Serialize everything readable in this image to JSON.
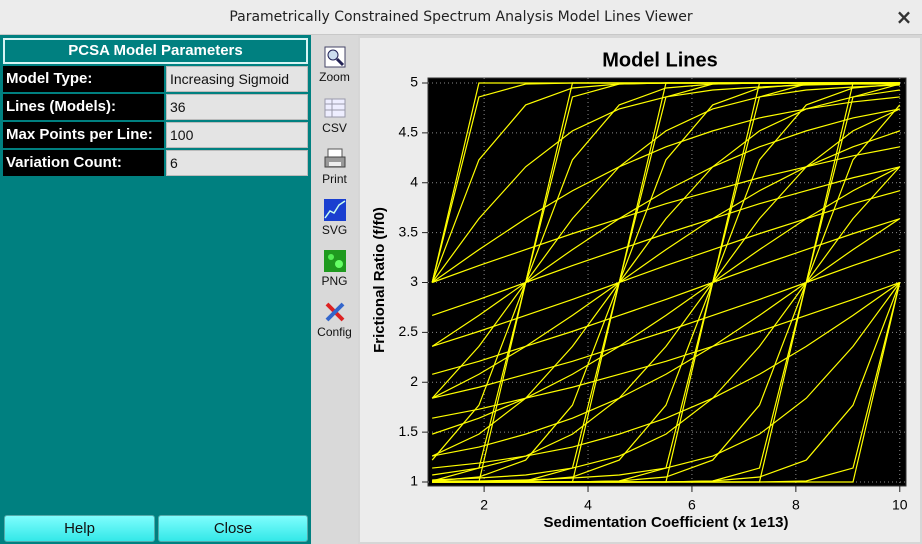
{
  "window": {
    "title": "Parametrically Constrained Spectrum Analysis Model Lines Viewer",
    "close": "×"
  },
  "panel": {
    "header": "PCSA Model Parameters",
    "rows": [
      [
        "Model Type:",
        "Increasing Sigmoid"
      ],
      [
        "Lines (Models):",
        "36"
      ],
      [
        "Max Points per Line:",
        "100"
      ],
      [
        "Variation Count:",
        "6"
      ]
    ],
    "buttons": [
      "Help",
      "Close"
    ]
  },
  "toolbar": [
    "Zoom",
    "CSV",
    "Print",
    "SVG",
    "PNG",
    "Config"
  ],
  "chart_data": {
    "type": "line",
    "title": "Model Lines",
    "x_label": "Sedimentation Coefficient (x 1e13)",
    "y_label": "Frictional Ratio (f/f0)",
    "x": [
      1,
      1.9,
      2.8,
      3.7,
      4.6,
      5.5,
      6.4,
      7.3,
      8.2,
      9.1,
      10
    ],
    "xlim": [
      0.92,
      10.12
    ],
    "xticks": [
      2,
      4,
      6,
      8,
      10
    ],
    "ylim": [
      0.96,
      5.05
    ],
    "yticks": [
      1,
      1.5,
      2,
      2.5,
      3,
      3.5,
      4,
      4.5,
      5
    ],
    "grid": true,
    "background": "#000000",
    "line_color": "#ffff00",
    "series": [
      {
        "values": [
          3,
          5,
          5,
          5,
          5,
          5,
          5,
          5,
          5,
          5,
          5
        ]
      },
      {
        "values": [
          3,
          4.86,
          4.99,
          5,
          5,
          5,
          5,
          5,
          5,
          5,
          5
        ]
      },
      {
        "values": [
          3,
          4.23,
          4.78,
          4.95,
          4.99,
          5,
          5,
          5,
          5,
          5,
          5
        ]
      },
      {
        "values": [
          3,
          3.64,
          4.16,
          4.52,
          4.74,
          4.86,
          4.93,
          4.96,
          4.98,
          4.99,
          4.99
        ]
      },
      {
        "values": [
          3,
          3.33,
          3.64,
          3.92,
          4.16,
          4.36,
          4.52,
          4.65,
          4.74,
          4.81,
          4.86
        ]
      },
      {
        "values": [
          3,
          3.17,
          3.33,
          3.49,
          3.64,
          3.79,
          3.92,
          4.05,
          4.16,
          4.27,
          4.36
        ]
      },
      {
        "values": [
          1,
          1,
          3,
          5,
          5,
          5,
          5,
          5,
          5,
          5,
          5
        ]
      },
      {
        "values": [
          1.01,
          1.14,
          3,
          4.86,
          4.99,
          5,
          5,
          5,
          5,
          5,
          5
        ]
      },
      {
        "values": [
          1.22,
          1.77,
          3,
          4.23,
          4.78,
          4.95,
          4.99,
          5,
          5,
          5,
          5
        ]
      },
      {
        "values": [
          1.84,
          2.36,
          3,
          3.64,
          4.16,
          4.52,
          4.74,
          4.86,
          4.93,
          4.96,
          4.98
        ]
      },
      {
        "values": [
          2.36,
          2.67,
          3,
          3.33,
          3.64,
          3.92,
          4.16,
          4.36,
          4.52,
          4.65,
          4.74
        ]
      },
      {
        "values": [
          2.67,
          2.83,
          3,
          3.17,
          3.33,
          3.49,
          3.64,
          3.79,
          3.92,
          4.05,
          4.16
        ]
      },
      {
        "values": [
          1,
          1,
          1,
          1,
          3,
          5,
          5,
          5,
          5,
          5,
          5
        ]
      },
      {
        "values": [
          1,
          1,
          1.01,
          1.14,
          3,
          4.86,
          4.99,
          5,
          5,
          5,
          5
        ]
      },
      {
        "values": [
          1.01,
          1.05,
          1.22,
          1.77,
          3,
          4.23,
          4.78,
          4.95,
          4.99,
          5,
          5
        ]
      },
      {
        "values": [
          1.26,
          1.48,
          1.84,
          2.36,
          3,
          3.64,
          4.16,
          4.52,
          4.74,
          4.86,
          4.93
        ]
      },
      {
        "values": [
          1.84,
          2.08,
          2.36,
          2.67,
          3,
          3.33,
          3.64,
          3.92,
          4.16,
          4.36,
          4.52
        ]
      },
      {
        "values": [
          2.36,
          2.51,
          2.67,
          2.83,
          3,
          3.17,
          3.33,
          3.49,
          3.64,
          3.79,
          3.92
        ]
      },
      {
        "values": [
          1,
          1,
          1,
          1,
          1,
          1,
          3,
          5,
          5,
          5,
          5
        ]
      },
      {
        "values": [
          1,
          1,
          1,
          1,
          1.01,
          1.14,
          3,
          4.86,
          4.99,
          5,
          5
        ]
      },
      {
        "values": [
          1,
          1,
          1.01,
          1.05,
          1.22,
          1.77,
          3,
          4.23,
          4.78,
          4.95,
          4.99
        ]
      },
      {
        "values": [
          1.07,
          1.14,
          1.26,
          1.48,
          1.84,
          2.36,
          3,
          3.64,
          4.16,
          4.52,
          4.74
        ]
      },
      {
        "values": [
          1.48,
          1.64,
          1.84,
          2.08,
          2.36,
          2.67,
          3,
          3.33,
          3.64,
          3.92,
          4.16
        ]
      },
      {
        "values": [
          2.08,
          2.21,
          2.36,
          2.51,
          2.67,
          2.83,
          3,
          3.17,
          3.33,
          3.49,
          3.64
        ]
      },
      {
        "values": [
          1,
          1,
          1,
          1,
          1,
          1,
          1,
          1,
          3,
          5,
          5
        ]
      },
      {
        "values": [
          1,
          1,
          1,
          1,
          1,
          1,
          1.01,
          1.14,
          3,
          4.86,
          4.99
        ]
      },
      {
        "values": [
          1,
          1,
          1,
          1,
          1.01,
          1.05,
          1.22,
          1.77,
          3,
          4.23,
          4.78
        ]
      },
      {
        "values": [
          1.02,
          1.04,
          1.07,
          1.14,
          1.26,
          1.48,
          1.84,
          2.36,
          3,
          3.64,
          4.16
        ]
      },
      {
        "values": [
          1.26,
          1.35,
          1.48,
          1.64,
          1.84,
          2.08,
          2.36,
          2.67,
          3,
          3.33,
          3.64
        ]
      },
      {
        "values": [
          1.84,
          1.95,
          2.08,
          2.21,
          2.36,
          2.51,
          2.67,
          2.83,
          3,
          3.17,
          3.33
        ]
      },
      {
        "values": [
          1,
          1,
          1,
          1,
          1,
          1,
          1,
          1,
          1,
          1,
          3
        ]
      },
      {
        "values": [
          1,
          1,
          1,
          1,
          1,
          1,
          1,
          1,
          1.01,
          1.14,
          3
        ]
      },
      {
        "values": [
          1,
          1,
          1,
          1,
          1,
          1,
          1.01,
          1.05,
          1.22,
          1.77,
          3
        ]
      },
      {
        "values": [
          1.01,
          1.01,
          1.02,
          1.04,
          1.07,
          1.14,
          1.26,
          1.48,
          1.84,
          2.36,
          3
        ]
      },
      {
        "values": [
          1.14,
          1.19,
          1.26,
          1.35,
          1.48,
          1.64,
          1.84,
          2.08,
          2.36,
          2.67,
          3
        ]
      },
      {
        "values": [
          1.64,
          1.73,
          1.84,
          1.95,
          2.08,
          2.21,
          2.36,
          2.51,
          2.67,
          2.83,
          3
        ]
      }
    ]
  }
}
